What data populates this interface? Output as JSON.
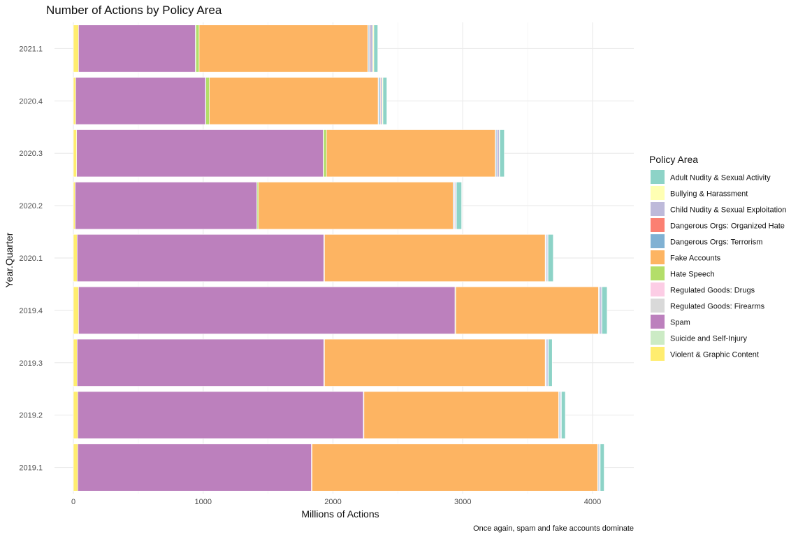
{
  "chart_data": {
    "type": "bar",
    "orientation": "horizontal",
    "stacked": true,
    "title": "Number of Actions by Policy Area",
    "xlabel": "Millions of Actions",
    "ylabel": "Year.Quarter",
    "caption": "Once again, spam and fake accounts dominate",
    "legend_title": "Policy Area",
    "legend_position": "right",
    "grid": true,
    "xlim": [
      0,
      4300
    ],
    "x_ticks": [
      0,
      1000,
      2000,
      3000,
      4000
    ],
    "categories": [
      "2021.1",
      "2020.4",
      "2020.3",
      "2020.2",
      "2020.1",
      "2019.4",
      "2019.3",
      "2019.2",
      "2019.1"
    ],
    "series": [
      {
        "name": "Violent & Graphic Content",
        "color": "#FFED6F",
        "values": [
          40,
          18,
          25,
          14,
          29,
          40,
          29,
          34,
          34
        ]
      },
      {
        "name": "Spam",
        "color": "#BC80BD",
        "values": [
          900,
          1000,
          1900,
          1400,
          1900,
          2900,
          1900,
          2200,
          1800
        ]
      },
      {
        "name": "Suicide and Self-Injury",
        "color": "#CCEBC5",
        "values": [
          4,
          3,
          3,
          2,
          2,
          2,
          2,
          2,
          2
        ]
      },
      {
        "name": "Hate Speech",
        "color": "#B3DE69",
        "values": [
          25,
          27,
          22,
          10,
          4,
          4,
          4,
          3,
          3
        ]
      },
      {
        "name": "Fake Accounts",
        "color": "#FDB462",
        "values": [
          1300,
          1300,
          1300,
          1500,
          1700,
          1100,
          1700,
          1500,
          2200
        ]
      },
      {
        "name": "Regulated Goods: Firearms",
        "color": "#D9D9D9",
        "values": [
          2,
          2,
          2,
          2,
          2,
          2,
          2,
          2,
          2
        ]
      },
      {
        "name": "Regulated Goods: Drugs",
        "color": "#FCCDE5",
        "values": [
          2,
          2,
          2,
          2,
          2,
          2,
          2,
          2,
          2
        ]
      },
      {
        "name": "Dangerous Orgs: Terrorism",
        "color": "#80B1D3",
        "values": [
          8,
          10,
          8,
          6,
          5,
          6,
          5,
          6,
          6
        ]
      },
      {
        "name": "Dangerous Orgs: Organized Hate",
        "color": "#FB8072",
        "values": [
          6,
          5,
          4,
          4,
          1,
          1,
          1,
          1,
          1
        ]
      },
      {
        "name": "Child Nudity & Sexual Exploitation",
        "color": "#BEBADA",
        "values": [
          20,
          12,
          15,
          8,
          9,
          12,
          11,
          7,
          6
        ]
      },
      {
        "name": "Bullying & Harassment",
        "color": "#FFFFB3",
        "values": [
          8,
          6,
          4,
          3,
          3,
          3,
          3,
          3,
          3
        ]
      },
      {
        "name": "Adult Nudity & Sexual Activity",
        "color": "#8DD3C7",
        "values": [
          30,
          30,
          35,
          40,
          40,
          40,
          30,
          30,
          30
        ]
      }
    ],
    "legend_order": [
      "Adult Nudity & Sexual Activity",
      "Bullying & Harassment",
      "Child Nudity & Sexual Exploitation",
      "Dangerous Orgs: Organized Hate",
      "Dangerous Orgs: Terrorism",
      "Fake Accounts",
      "Hate Speech",
      "Regulated Goods: Drugs",
      "Regulated Goods: Firearms",
      "Spam",
      "Suicide and Self-Injury",
      "Violent & Graphic Content"
    ]
  }
}
